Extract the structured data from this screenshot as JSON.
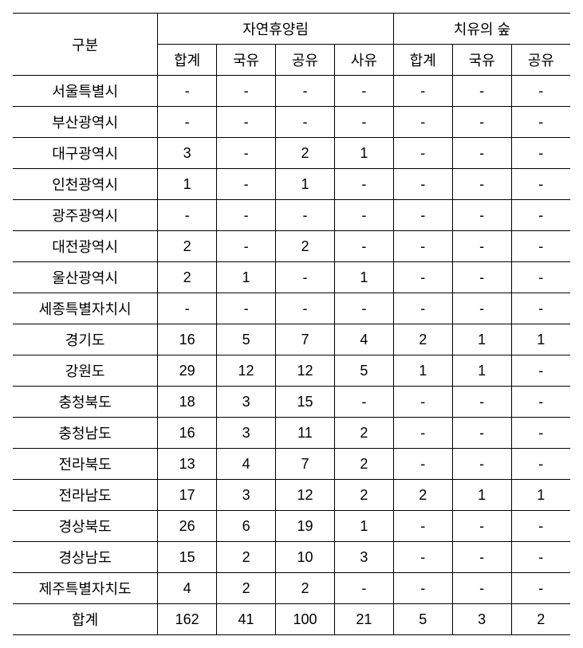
{
  "table": {
    "header": {
      "rowLabel": "구분",
      "group1": "자연휴양림",
      "group2": "치유의 숲",
      "sub": [
        "합계",
        "국유",
        "공유",
        "사유",
        "합계",
        "국유",
        "공유"
      ]
    },
    "rows": [
      {
        "label": "서울특별시",
        "c": [
          "-",
          "-",
          "-",
          "-",
          "-",
          "-",
          "-"
        ]
      },
      {
        "label": "부산광역시",
        "c": [
          "-",
          "-",
          "-",
          "-",
          "-",
          "-",
          "-"
        ]
      },
      {
        "label": "대구광역시",
        "c": [
          "3",
          "-",
          "2",
          "1",
          "-",
          "-",
          "-"
        ]
      },
      {
        "label": "인천광역시",
        "c": [
          "1",
          "-",
          "1",
          "-",
          "-",
          "-",
          "-"
        ]
      },
      {
        "label": "광주광역시",
        "c": [
          "-",
          "-",
          "-",
          "-",
          "-",
          "-",
          "-"
        ]
      },
      {
        "label": "대전광역시",
        "c": [
          "2",
          "-",
          "2",
          "-",
          "-",
          "-",
          "-"
        ]
      },
      {
        "label": "울산광역시",
        "c": [
          "2",
          "1",
          "-",
          "1",
          "-",
          "-",
          "-"
        ]
      },
      {
        "label": "세종특별자치시",
        "c": [
          "-",
          "-",
          "-",
          "-",
          "-",
          "-",
          "-"
        ]
      },
      {
        "label": "경기도",
        "c": [
          "16",
          "5",
          "7",
          "4",
          "2",
          "1",
          "1"
        ]
      },
      {
        "label": "강원도",
        "c": [
          "29",
          "12",
          "12",
          "5",
          "1",
          "1",
          "-"
        ]
      },
      {
        "label": "충청북도",
        "c": [
          "18",
          "3",
          "15",
          "-",
          "-",
          "-",
          "-"
        ]
      },
      {
        "label": "충청남도",
        "c": [
          "16",
          "3",
          "11",
          "2",
          "-",
          "-",
          "-"
        ]
      },
      {
        "label": "전라북도",
        "c": [
          "13",
          "4",
          "7",
          "2",
          "-",
          "-",
          "-"
        ]
      },
      {
        "label": "전라남도",
        "c": [
          "17",
          "3",
          "12",
          "2",
          "2",
          "1",
          "1"
        ]
      },
      {
        "label": "경상북도",
        "c": [
          "26",
          "6",
          "19",
          "1",
          "-",
          "-",
          "-"
        ]
      },
      {
        "label": "경상남도",
        "c": [
          "15",
          "2",
          "10",
          "3",
          "-",
          "-",
          "-"
        ]
      },
      {
        "label": "제주특별자치도",
        "c": [
          "4",
          "2",
          "2",
          "-",
          "-",
          "-",
          "-"
        ]
      },
      {
        "label": "합계",
        "c": [
          "162",
          "41",
          "100",
          "21",
          "5",
          "3",
          "2"
        ]
      }
    ]
  }
}
